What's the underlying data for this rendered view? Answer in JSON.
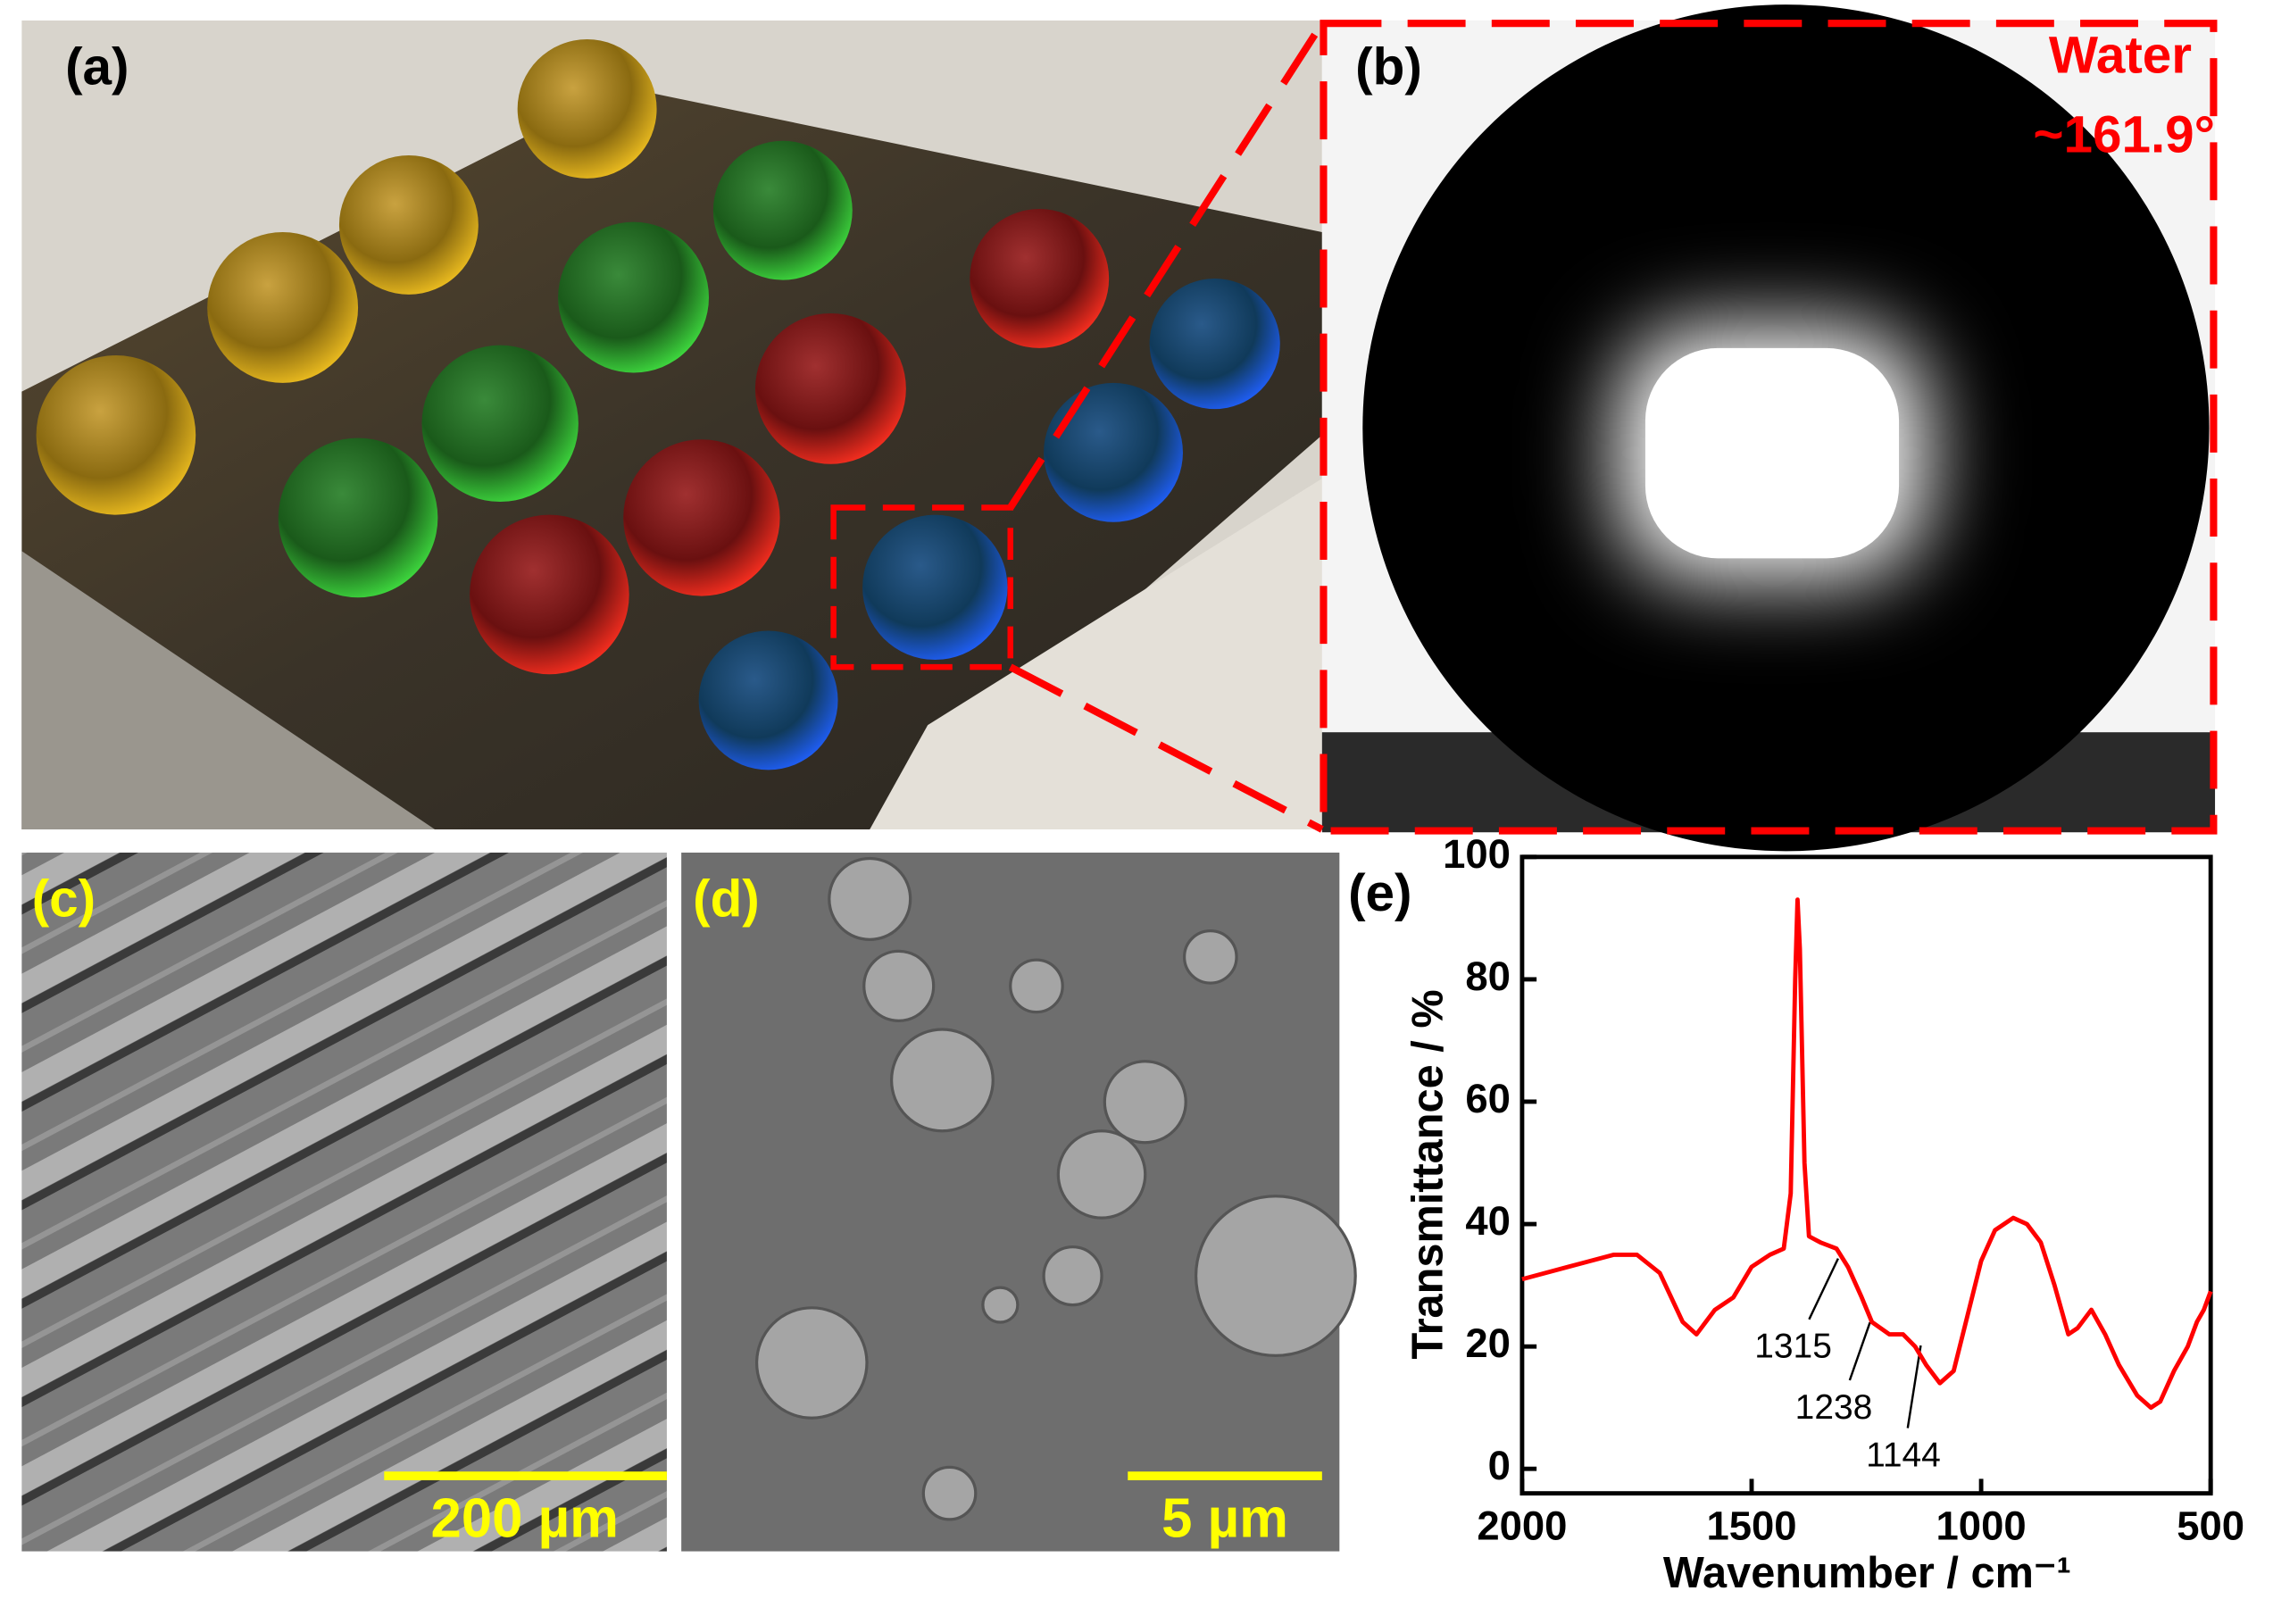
{
  "panels": {
    "a": {
      "label": "(a)"
    },
    "b": {
      "label": "(b)",
      "liquid": "Water",
      "angle": "~161.9°"
    },
    "c": {
      "label": "(c)",
      "scale_bar": "200 µm"
    },
    "d": {
      "label": "(d)",
      "scale_bar": "5 µm"
    }
  },
  "chart_data": {
    "type": "line",
    "panel_label": "(e)",
    "x_label": "Wavenumber / cm⁻¹",
    "y_label": "Transmittance / %",
    "x": [
      2000,
      1900,
      1800,
      1750,
      1700,
      1650,
      1620,
      1580,
      1540,
      1500,
      1460,
      1430,
      1415,
      1405,
      1400,
      1395,
      1385,
      1375,
      1350,
      1315,
      1290,
      1260,
      1238,
      1200,
      1170,
      1144,
      1120,
      1090,
      1060,
      1030,
      1000,
      970,
      930,
      900,
      870,
      840,
      810,
      790,
      760,
      730,
      700,
      660,
      630,
      610,
      580,
      550,
      530,
      515,
      500
    ],
    "values": [
      31,
      33,
      35,
      35,
      32,
      24,
      22,
      26,
      28,
      33,
      35,
      36,
      45,
      80,
      93,
      85,
      50,
      38,
      37,
      36,
      33,
      28,
      24,
      22,
      22,
      20,
      17,
      14,
      16,
      25,
      34,
      39,
      41,
      40,
      37,
      30,
      22,
      23,
      26,
      22,
      17,
      12,
      10,
      11,
      16,
      20,
      24,
      26,
      29
    ],
    "color": "#ff0000",
    "xlim": [
      2000,
      500
    ],
    "ylim": [
      -4,
      100
    ],
    "xticks": [
      2000,
      1500,
      1000,
      500
    ],
    "yticks": [
      0,
      20,
      40,
      60,
      80,
      100
    ],
    "annotations": [
      "1315",
      "1238",
      "1144"
    ]
  }
}
